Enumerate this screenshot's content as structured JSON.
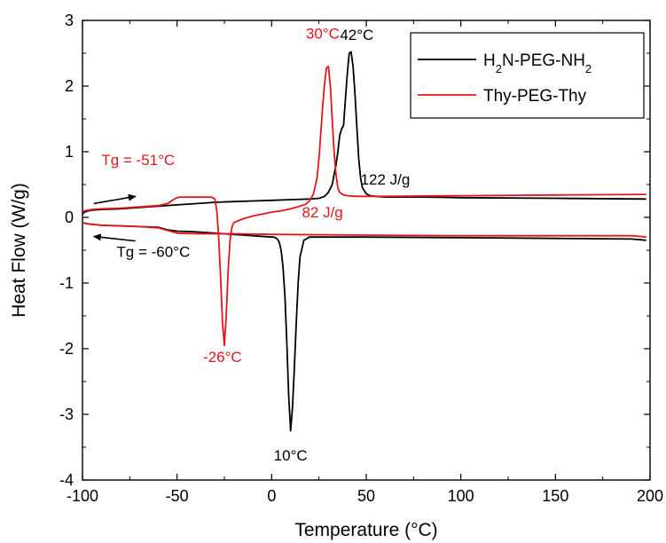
{
  "chart_data": {
    "type": "line",
    "title": "",
    "xlabel": "Temperature (°C)",
    "ylabel": "Heat Flow (W/g)",
    "xlim": [
      -100,
      200
    ],
    "ylim": [
      -4,
      3
    ],
    "x_ticks": [
      -100,
      -50,
      0,
      50,
      100,
      150,
      200
    ],
    "y_ticks": [
      -4,
      -3,
      -2,
      -1,
      0,
      1,
      2,
      3
    ],
    "x_tick_labels": [
      "-100",
      "-50",
      "0",
      "50",
      "100",
      "150",
      "200"
    ],
    "y_tick_labels": [
      "-4",
      "-3",
      "-2",
      "-1",
      "0",
      "1",
      "2",
      "3"
    ],
    "grid": false,
    "legend_position": "top-right",
    "series": [
      {
        "name": "H₂N-PEG-NH₂",
        "color": "#000000",
        "segments": [
          {
            "label": "heating",
            "x": [
              -100,
              -99,
              -97,
              -95,
              -90,
              -80,
              -70,
              -60,
              -50,
              -40,
              -30,
              -20,
              -10,
              0,
              10,
              20,
              25,
              28,
              30,
              32,
              33,
              34,
              35,
              36,
              37,
              38,
              39,
              40,
              41,
              42,
              43,
              44,
              45,
              46,
              47,
              48,
              50,
              52,
              55,
              60,
              80,
              100,
              150,
              198
            ],
            "y": [
              0.05,
              0.08,
              0.1,
              0.11,
              0.12,
              0.13,
              0.15,
              0.17,
              0.19,
              0.21,
              0.23,
              0.24,
              0.25,
              0.26,
              0.27,
              0.28,
              0.29,
              0.32,
              0.38,
              0.5,
              0.65,
              0.8,
              1.0,
              1.25,
              1.35,
              1.4,
              1.8,
              2.2,
              2.5,
              2.52,
              2.3,
              1.9,
              1.4,
              0.9,
              0.6,
              0.45,
              0.36,
              0.33,
              0.32,
              0.31,
              0.31,
              0.3,
              0.29,
              0.28
            ]
          },
          {
            "label": "cooling",
            "x": [
              198,
              195,
              190,
              150,
              100,
              50,
              30,
              20,
              17,
              15,
              14,
              13,
              12,
              11,
              10,
              9,
              8,
              7,
              6,
              5,
              4,
              3,
              2,
              1,
              0,
              -10,
              -20,
              -30,
              -40,
              -50,
              -55,
              -60,
              -70,
              -80,
              -90,
              -97,
              -100
            ],
            "y": [
              -0.35,
              -0.34,
              -0.33,
              -0.32,
              -0.31,
              -0.3,
              -0.3,
              -0.3,
              -0.35,
              -0.6,
              -1.0,
              -1.6,
              -2.3,
              -2.9,
              -3.25,
              -2.7,
              -1.9,
              -1.2,
              -0.75,
              -0.5,
              -0.38,
              -0.33,
              -0.31,
              -0.3,
              -0.3,
              -0.28,
              -0.26,
              -0.24,
              -0.22,
              -0.21,
              -0.19,
              -0.15,
              -0.14,
              -0.13,
              -0.12,
              -0.1,
              -0.08
            ]
          }
        ]
      },
      {
        "name": "Thy-PEG-Thy",
        "color": "#e8141b",
        "segments": [
          {
            "label": "heating",
            "x": [
              -100,
              -99,
              -97,
              -95,
              -90,
              -80,
              -70,
              -60,
              -55,
              -52,
              -50,
              -48,
              -40,
              -32,
              -30,
              -29,
              -28,
              -27,
              -26,
              -25,
              -24,
              -23,
              -22,
              -21,
              -20,
              -15,
              -10,
              -5,
              0,
              5,
              10,
              15,
              18,
              20,
              22,
              24,
              25,
              26,
              27,
              28,
              29,
              30,
              31,
              32,
              33,
              34,
              35,
              36,
              38,
              40,
              45,
              50,
              60,
              100,
              150,
              198
            ],
            "y": [
              0.08,
              0.1,
              0.11,
              0.12,
              0.13,
              0.14,
              0.16,
              0.18,
              0.21,
              0.27,
              0.3,
              0.31,
              0.31,
              0.31,
              0.28,
              0.1,
              -0.3,
              -0.9,
              -1.6,
              -1.95,
              -1.5,
              -0.8,
              -0.35,
              -0.15,
              -0.08,
              -0.02,
              0.02,
              0.05,
              0.08,
              0.1,
              0.13,
              0.17,
              0.2,
              0.25,
              0.35,
              0.6,
              0.9,
              1.3,
              1.7,
              2.05,
              2.28,
              2.3,
              2.0,
              1.5,
              1.0,
              0.65,
              0.45,
              0.38,
              0.34,
              0.33,
              0.32,
              0.32,
              0.32,
              0.33,
              0.34,
              0.35
            ]
          },
          {
            "label": "cooling",
            "x": [
              198,
              195,
              190,
              150,
              100,
              50,
              0,
              -20,
              -40,
              -50,
              -55,
              -60,
              -70,
              -80,
              -90,
              -97,
              -100
            ],
            "y": [
              -0.3,
              -0.29,
              -0.28,
              -0.28,
              -0.28,
              -0.27,
              -0.26,
              -0.25,
              -0.25,
              -0.24,
              -0.2,
              -0.16,
              -0.14,
              -0.13,
              -0.12,
              -0.1,
              -0.08
            ]
          }
        ]
      }
    ],
    "annotations": [
      {
        "text": "42°C",
        "x": 45,
        "y": 2.7,
        "color": "#000000",
        "anchor": "middle"
      },
      {
        "text": "30°C",
        "x": 27,
        "y": 2.72,
        "color": "#e8141b",
        "anchor": "middle"
      },
      {
        "text": "122 J/g",
        "x": 47,
        "y": 0.5,
        "color": "#000000",
        "anchor": "start"
      },
      {
        "text": "82 J/g",
        "x": 16,
        "y": 0.0,
        "color": "#e8141b",
        "anchor": "start"
      },
      {
        "text": "Tg = -51°C",
        "x": -90,
        "y": 0.8,
        "color": "#e8141b",
        "anchor": "start"
      },
      {
        "text": "Tg = -60°C",
        "x": -82,
        "y": -0.6,
        "color": "#000000",
        "anchor": "start"
      },
      {
        "text": "-26°C",
        "x": -26,
        "y": -2.2,
        "color": "#e8141b",
        "anchor": "middle"
      },
      {
        "text": "10°C",
        "x": 10,
        "y": -3.7,
        "color": "#000000",
        "anchor": "middle"
      }
    ],
    "arrows": [
      {
        "from": [
          -94,
          0.21
        ],
        "to": [
          -72,
          0.32
        ],
        "color": "#000000"
      },
      {
        "from": [
          -72,
          -0.36
        ],
        "to": [
          -94,
          -0.29
        ],
        "color": "#000000"
      }
    ]
  }
}
